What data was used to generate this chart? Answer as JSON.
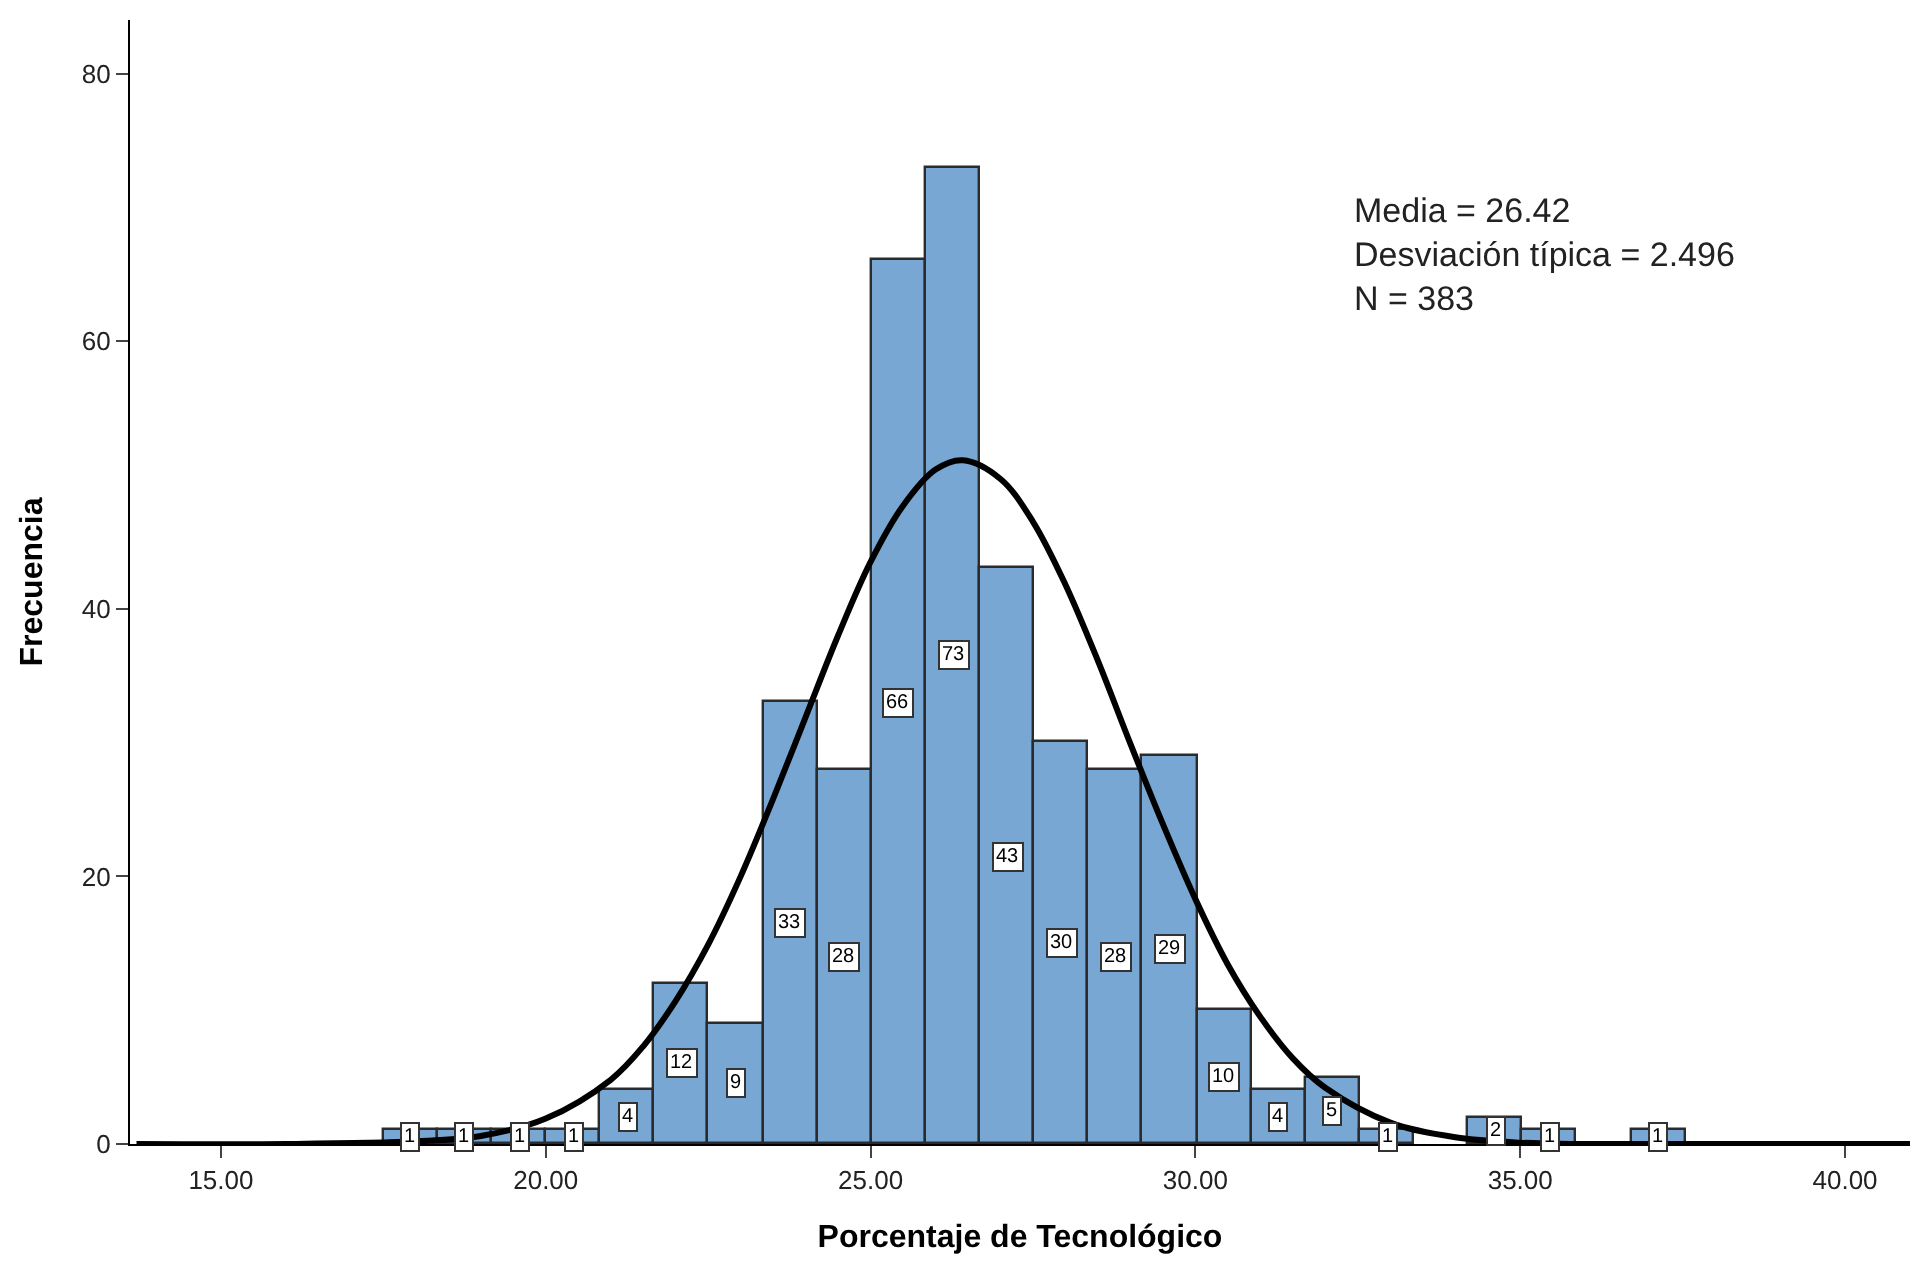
{
  "chart_data": {
    "type": "histogram",
    "xlabel": "Porcentaje de Tecnológico",
    "ylabel": "Frecuencia",
    "bins": [
      17.5,
      18.34,
      19.17,
      20.01,
      20.84,
      21.68,
      22.51,
      23.35,
      24.18,
      25.02,
      25.85,
      26.69,
      27.52,
      28.36,
      29.19,
      30.03,
      30.86,
      31.7,
      32.53,
      33.37,
      34.2,
      35.04,
      35.87,
      36.71,
      37.54
    ],
    "values": [
      1,
      1,
      1,
      1,
      4,
      12,
      9,
      33,
      28,
      66,
      73,
      43,
      30,
      28,
      29,
      10,
      4,
      5,
      1,
      0,
      2,
      1,
      0,
      1
    ],
    "value_labels": [
      "1",
      "1",
      "1",
      "1",
      "4",
      "12",
      "9",
      "33",
      "28",
      "66",
      "73",
      "43",
      "30",
      "28",
      "29",
      "10",
      "4",
      "5",
      "1",
      null,
      "2",
      "1",
      null,
      "1"
    ],
    "color": "#79a7d3",
    "series": [
      {
        "type": "line",
        "color": "#000000",
        "x": [
          13.7,
          16,
          18,
          19,
          20,
          21,
          21.5,
          22,
          22.5,
          23,
          23.5,
          24,
          24.5,
          25,
          25.5,
          26,
          26.42,
          27,
          27.5,
          28,
          28.5,
          29,
          29.5,
          30,
          30.5,
          31,
          31.5,
          32,
          33,
          34,
          35,
          36,
          38,
          41
        ],
        "values": [
          0,
          0,
          0.2,
          0.6,
          1.9,
          4.8,
          7.3,
          10.7,
          14.9,
          20.0,
          25.8,
          31.9,
          38.0,
          43.5,
          47.7,
          50.4,
          51.1,
          49.7,
          46.5,
          41.8,
          36.1,
          29.9,
          23.9,
          18.3,
          13.4,
          9.5,
          6.4,
          4.2,
          1.6,
          0.5,
          0.1,
          0,
          0,
          0
        ]
      }
    ],
    "annotations": [
      "Media = 26.42",
      "Desviación típica = 2.496",
      "N = 383"
    ],
    "xlim": [
      13.6,
      41.0
    ],
    "ylim": [
      0,
      84
    ],
    "xticks": [
      {
        "value": 15,
        "label": "15.00"
      },
      {
        "value": 20,
        "label": "20.00"
      },
      {
        "value": 25,
        "label": "25.00"
      },
      {
        "value": 30,
        "label": "30.00"
      },
      {
        "value": 35,
        "label": "35.00"
      },
      {
        "value": 40,
        "label": "40.00"
      }
    ],
    "yticks": [
      0,
      20,
      40,
      60,
      80
    ]
  }
}
